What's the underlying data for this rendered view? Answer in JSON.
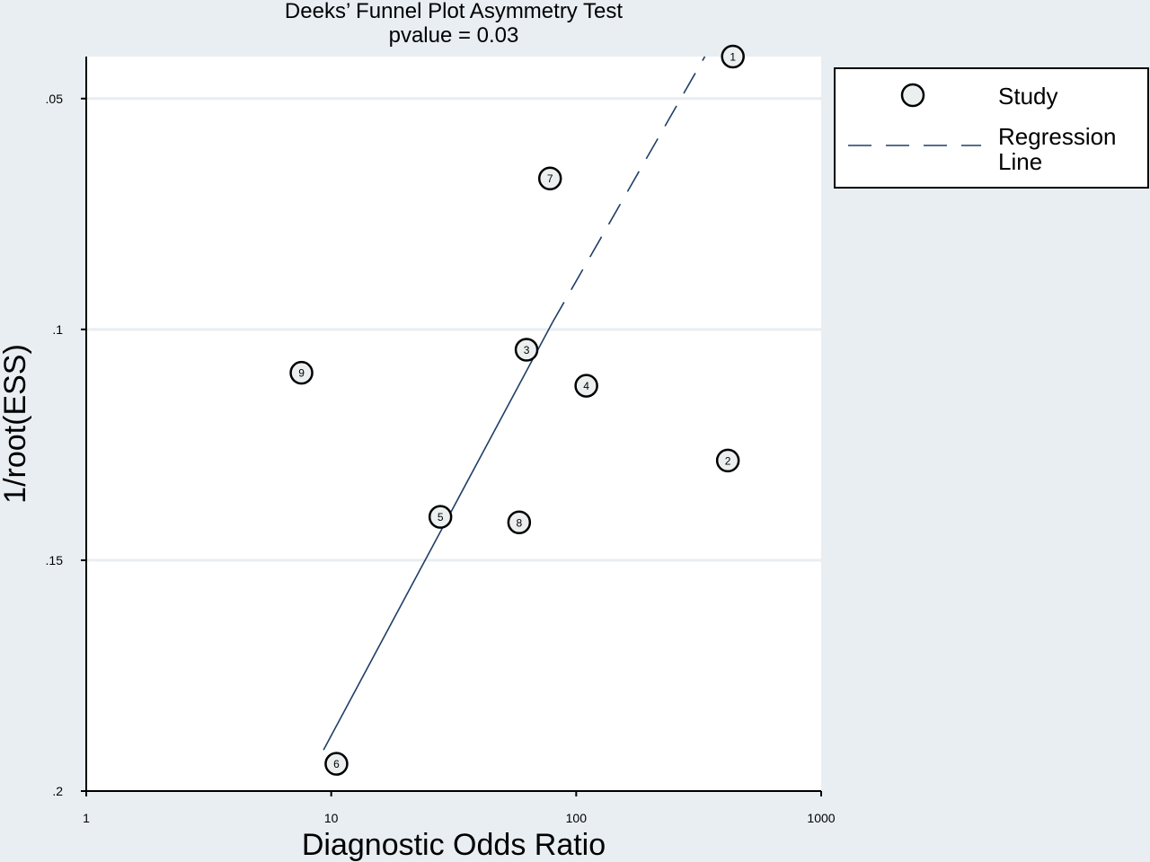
{
  "chart_data": {
    "type": "scatter",
    "title": "Deeks’ Funnel Plot Asymmetry Test",
    "subtitle": "pvalue  =   0.03",
    "xlabel": "Diagnostic Odds Ratio",
    "ylabel": "1/root(ESS)",
    "x_scale": "log",
    "xlim": [
      1,
      1000
    ],
    "x_ticks": [
      1,
      10,
      100,
      1000
    ],
    "x_tick_labels": [
      "1",
      "10",
      "100",
      "1000"
    ],
    "y_reversed": true,
    "ylim": [
      0.2,
      0.0409
    ],
    "y_ticks": [
      0.05,
      0.1,
      0.15,
      0.2
    ],
    "y_tick_labels": [
      ".05",
      ".1",
      ".15",
      ".2"
    ],
    "grid": "horizontal",
    "legend_position": "right-top",
    "legend": {
      "study_label": "Study",
      "regression_label_line1": "Regression",
      "regression_label_line2": "Line"
    },
    "series": [
      {
        "name": "Study",
        "points": [
          {
            "label": "1",
            "x": 436,
            "y": 0.0409
          },
          {
            "label": "2",
            "x": 416,
            "y": 0.1284
          },
          {
            "label": "3",
            "x": 62.7,
            "y": 0.1044
          },
          {
            "label": "4",
            "x": 110,
            "y": 0.1122
          },
          {
            "label": "5",
            "x": 27.9,
            "y": 0.1406
          },
          {
            "label": "6",
            "x": 10.5,
            "y": 0.1941
          },
          {
            "label": "7",
            "x": 78.2,
            "y": 0.0673
          },
          {
            "label": "8",
            "x": 58.5,
            "y": 0.1418
          },
          {
            "label": "9",
            "x": 7.56,
            "y": 0.1094
          }
        ]
      },
      {
        "name": "Regression Line",
        "line": [
          {
            "x": 9.3,
            "y": 0.1911
          },
          {
            "x": 80,
            "y": 0.0985
          },
          {
            "x": 335,
            "y": 0.0409
          }
        ],
        "dash_from_x": 80
      }
    ],
    "colors": {
      "background": "#e8eef2",
      "plot_area": "#ffffff",
      "gridline": "#e8eef2",
      "regression_line": "#1f3f66",
      "marker_fill": "#ecefef",
      "marker_stroke": "#000000"
    }
  }
}
